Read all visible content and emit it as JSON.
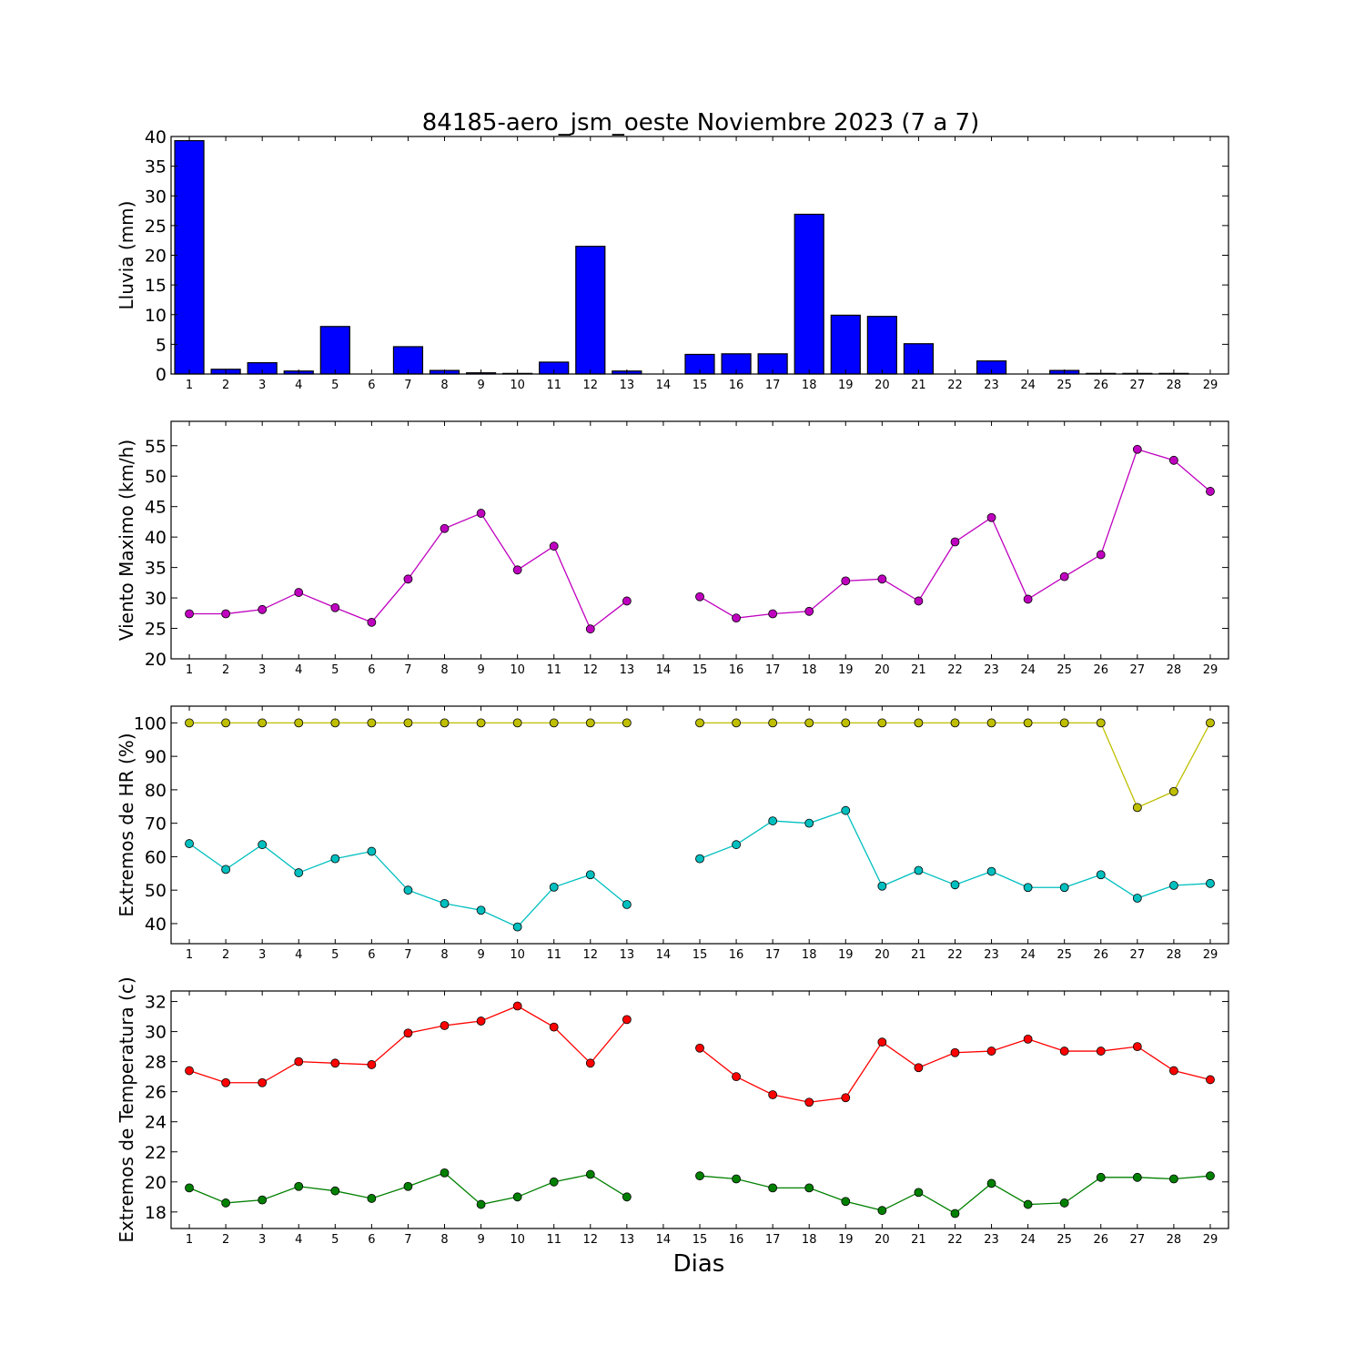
{
  "chart_data": [
    {
      "type": "bar",
      "title": "84185-aero_jsm_oeste Noviembre 2023  (7 a 7)",
      "ylabel": "Lluvia (mm)",
      "xlabel": "",
      "ylim": [
        0,
        40
      ],
      "yticks": [
        0,
        5,
        10,
        15,
        20,
        25,
        30,
        35,
        40
      ],
      "categories": [
        "1",
        "2",
        "3",
        "4",
        "5",
        "6",
        "7",
        "8",
        "9",
        "10",
        "11",
        "12",
        "13",
        "14",
        "15",
        "16",
        "17",
        "18",
        "19",
        "20",
        "21",
        "22",
        "23",
        "24",
        "25",
        "26",
        "27",
        "28",
        "29"
      ],
      "series": [
        {
          "color": "#0000ff",
          "values": [
            39.3,
            0.8,
            1.9,
            0.5,
            8.0,
            0,
            4.6,
            0.6,
            0.2,
            0.1,
            2.0,
            21.5,
            0.5,
            null,
            3.3,
            3.4,
            3.4,
            26.9,
            9.9,
            9.7,
            5.1,
            0,
            2.2,
            0,
            0.6,
            0.1,
            0.1,
            0.1,
            0
          ]
        }
      ],
      "grid": false
    },
    {
      "type": "line",
      "title": "",
      "ylabel": "Viento Maximo (km/h)",
      "xlabel": "",
      "ylim": [
        20,
        59
      ],
      "yticks": [
        20,
        25,
        30,
        35,
        40,
        45,
        50,
        55
      ],
      "categories": [
        "1",
        "2",
        "3",
        "4",
        "5",
        "6",
        "7",
        "8",
        "9",
        "10",
        "11",
        "12",
        "13",
        "14",
        "15",
        "16",
        "17",
        "18",
        "19",
        "20",
        "21",
        "22",
        "23",
        "24",
        "25",
        "26",
        "27",
        "28",
        "29"
      ],
      "series": [
        {
          "color": "#bf00bf",
          "values": [
            27.4,
            27.4,
            28.1,
            30.9,
            28.4,
            26.0,
            33.1,
            41.4,
            43.9,
            34.6,
            38.5,
            24.9,
            29.5,
            null,
            30.2,
            26.7,
            27.4,
            27.8,
            32.8,
            33.1,
            29.5,
            39.2,
            43.2,
            29.8,
            33.5,
            37.1,
            54.4,
            52.6,
            47.5
          ]
        }
      ],
      "grid": false
    },
    {
      "type": "line",
      "title": "",
      "ylabel": "Extremos de HR (%)",
      "xlabel": "",
      "ylim": [
        34,
        105
      ],
      "yticks": [
        40,
        50,
        60,
        70,
        80,
        90,
        100
      ],
      "categories": [
        "1",
        "2",
        "3",
        "4",
        "5",
        "6",
        "7",
        "8",
        "9",
        "10",
        "11",
        "12",
        "13",
        "14",
        "15",
        "16",
        "17",
        "18",
        "19",
        "20",
        "21",
        "22",
        "23",
        "24",
        "25",
        "26",
        "27",
        "28",
        "29"
      ],
      "series": [
        {
          "color": "#bfbf00",
          "values": [
            100,
            100,
            100,
            100,
            100,
            100,
            100,
            100,
            100,
            100,
            100,
            100,
            100,
            null,
            100,
            100,
            100,
            100,
            100,
            100,
            100,
            100,
            100,
            100,
            100,
            100,
            74.7,
            79.5,
            100
          ]
        },
        {
          "color": "#00bfbf",
          "values": [
            63.9,
            56.2,
            63.6,
            55.2,
            59.4,
            61.6,
            50.0,
            46.0,
            44.0,
            39.0,
            50.9,
            54.6,
            45.7,
            null,
            59.4,
            63.6,
            70.7,
            70.0,
            73.8,
            51.2,
            55.9,
            51.6,
            55.6,
            50.8,
            50.8,
            54.6,
            47.6,
            51.4,
            52.0
          ]
        }
      ],
      "grid": false
    },
    {
      "type": "line",
      "title": "",
      "ylabel": "Extremos de Temperatura (c)",
      "xlabel": "Dias",
      "ylim": [
        16.9,
        32.7
      ],
      "yticks": [
        18,
        20,
        22,
        24,
        26,
        28,
        30,
        32
      ],
      "categories": [
        "1",
        "2",
        "3",
        "4",
        "5",
        "6",
        "7",
        "8",
        "9",
        "10",
        "11",
        "12",
        "13",
        "14",
        "15",
        "16",
        "17",
        "18",
        "19",
        "20",
        "21",
        "22",
        "23",
        "24",
        "25",
        "26",
        "27",
        "28",
        "29"
      ],
      "series": [
        {
          "color": "#ff0000",
          "values": [
            27.4,
            26.6,
            26.6,
            28.0,
            27.9,
            27.8,
            29.9,
            30.4,
            30.7,
            31.7,
            30.3,
            27.9,
            30.8,
            null,
            28.9,
            27.0,
            25.8,
            25.3,
            25.6,
            29.3,
            27.6,
            28.6,
            28.7,
            29.5,
            28.7,
            28.7,
            29.0,
            27.4,
            26.8
          ]
        },
        {
          "color": "#008000",
          "values": [
            19.6,
            18.6,
            18.8,
            19.7,
            19.4,
            18.9,
            19.7,
            20.6,
            18.5,
            19.0,
            20.0,
            20.5,
            19.0,
            null,
            20.4,
            20.2,
            19.6,
            19.6,
            18.7,
            18.1,
            19.3,
            17.9,
            19.9,
            18.5,
            18.6,
            20.3,
            20.3,
            20.2,
            20.4
          ]
        }
      ],
      "grid": false
    }
  ]
}
